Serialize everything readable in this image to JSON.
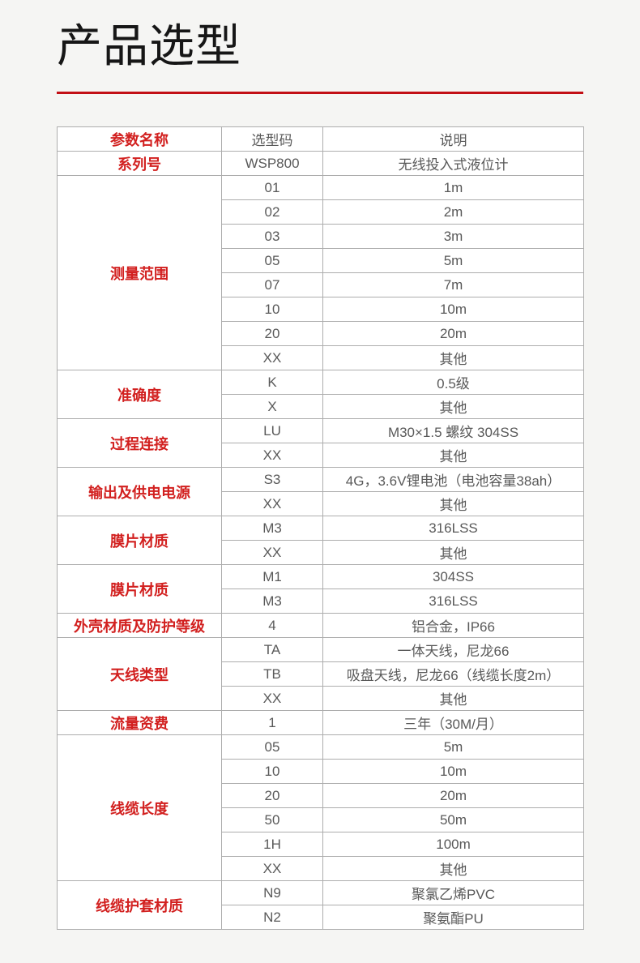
{
  "page": {
    "title": "产品选型",
    "accent_color": "#c20f15",
    "red_text_color": "#d2201f",
    "cell_text_color": "#595959",
    "background_color": "#f5f5f3"
  },
  "table": {
    "headers": [
      "参数名称",
      "选型码",
      "说明"
    ],
    "sections": [
      {
        "param": "系列号",
        "rows": [
          {
            "code": "WSP800",
            "desc": "无线投入式液位计"
          }
        ]
      },
      {
        "param": "测量范围",
        "rows": [
          {
            "code": "01",
            "desc": "1m"
          },
          {
            "code": "02",
            "desc": "2m"
          },
          {
            "code": "03",
            "desc": "3m"
          },
          {
            "code": "05",
            "desc": "5m"
          },
          {
            "code": "07",
            "desc": "7m"
          },
          {
            "code": "10",
            "desc": "10m"
          },
          {
            "code": "20",
            "desc": "20m"
          },
          {
            "code": "XX",
            "desc": "其他"
          }
        ]
      },
      {
        "param": "准确度",
        "rows": [
          {
            "code": "K",
            "desc": "0.5级"
          },
          {
            "code": "X",
            "desc": "其他"
          }
        ]
      },
      {
        "param": "过程连接",
        "rows": [
          {
            "code": "LU",
            "desc": "M30×1.5 螺纹 304SS"
          },
          {
            "code": "XX",
            "desc": "其他"
          }
        ]
      },
      {
        "param": "输出及供电电源",
        "rows": [
          {
            "code": "S3",
            "desc": "4G，3.6V锂电池（电池容量38ah）"
          },
          {
            "code": "XX",
            "desc": "其他"
          }
        ]
      },
      {
        "param": "膜片材质",
        "rows": [
          {
            "code": "M3",
            "desc": "316LSS"
          },
          {
            "code": "XX",
            "desc": "其他"
          }
        ]
      },
      {
        "param": "膜片材质",
        "rows": [
          {
            "code": "M1",
            "desc": "304SS"
          },
          {
            "code": "M3",
            "desc": "316LSS"
          }
        ]
      },
      {
        "param": "外壳材质及防护等级",
        "rows": [
          {
            "code": "4",
            "desc": "铝合金，IP66"
          }
        ]
      },
      {
        "param": "天线类型",
        "rows": [
          {
            "code": "TA",
            "desc": "一体天线，尼龙66"
          },
          {
            "code": "TB",
            "desc": "吸盘天线，尼龙66（线缆长度2m）"
          },
          {
            "code": "XX",
            "desc": "其他"
          }
        ]
      },
      {
        "param": "流量资费",
        "rows": [
          {
            "code": "1",
            "desc": "三年（30M/月）"
          }
        ]
      },
      {
        "param": "线缆长度",
        "rows": [
          {
            "code": "05",
            "desc": "5m"
          },
          {
            "code": "10",
            "desc": "10m"
          },
          {
            "code": "20",
            "desc": "20m"
          },
          {
            "code": "50",
            "desc": "50m"
          },
          {
            "code": "1H",
            "desc": "100m"
          },
          {
            "code": "XX",
            "desc": "其他"
          }
        ]
      },
      {
        "param": "线缆护套材质",
        "rows": [
          {
            "code": "N9",
            "desc": "聚氯乙烯PVC"
          },
          {
            "code": "N2",
            "desc": "聚氨酯PU"
          }
        ]
      }
    ]
  }
}
